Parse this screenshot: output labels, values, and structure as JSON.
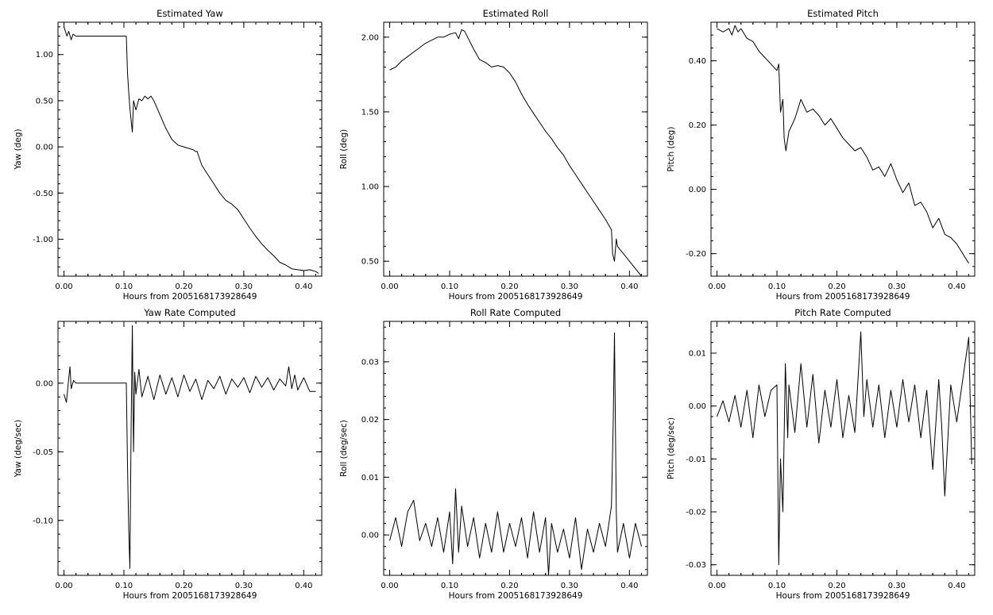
{
  "chart_data": [
    {
      "type": "line",
      "title": "Estimated Yaw",
      "xlabel": "Hours from 2005168173928649",
      "ylabel": "Yaw (deg)",
      "xlim": [
        -0.01,
        0.43
      ],
      "ylim": [
        -1.4,
        1.35
      ],
      "xticks": [
        0.0,
        0.1,
        0.2,
        0.3,
        0.4
      ],
      "xtick_labels": [
        "0.00",
        "0.10",
        "0.20",
        "0.30",
        "0.40"
      ],
      "yticks": [
        1.0,
        0.5,
        0.0,
        -0.5,
        -1.0
      ],
      "ytick_labels": [
        "1.00",
        "0.50",
        "0.00",
        "-0.50",
        "-1.00"
      ],
      "series": [
        {
          "x": [
            0.0,
            0.005,
            0.008,
            0.012,
            0.015,
            0.02,
            0.05,
            0.08,
            0.104,
            0.106,
            0.108,
            0.11,
            0.112,
            0.114,
            0.116,
            0.12,
            0.125,
            0.13,
            0.135,
            0.14,
            0.145,
            0.15,
            0.16,
            0.17,
            0.18,
            0.19,
            0.2,
            0.21,
            0.215,
            0.22,
            0.222,
            0.23,
            0.24,
            0.25,
            0.26,
            0.27,
            0.28,
            0.29,
            0.3,
            0.31,
            0.32,
            0.33,
            0.34,
            0.35,
            0.36,
            0.37,
            0.38,
            0.39,
            0.4,
            0.41,
            0.42,
            0.425
          ],
          "values": [
            1.3,
            1.2,
            1.25,
            1.16,
            1.22,
            1.2,
            1.2,
            1.2,
            1.2,
            0.8,
            0.6,
            0.42,
            0.28,
            0.16,
            0.5,
            0.4,
            0.52,
            0.5,
            0.55,
            0.52,
            0.55,
            0.5,
            0.35,
            0.2,
            0.08,
            0.02,
            0.0,
            -0.02,
            -0.03,
            -0.05,
            -0.05,
            -0.2,
            -0.3,
            -0.4,
            -0.5,
            -0.58,
            -0.62,
            -0.68,
            -0.78,
            -0.88,
            -0.97,
            -1.05,
            -1.12,
            -1.18,
            -1.25,
            -1.28,
            -1.32,
            -1.33,
            -1.34,
            -1.33,
            -1.35,
            -1.37
          ]
        }
      ]
    },
    {
      "type": "line",
      "title": "Estimated Roll",
      "xlabel": "Hours from 2005168173928649",
      "ylabel": "Roll (deg)",
      "xlim": [
        -0.01,
        0.43
      ],
      "ylim": [
        0.4,
        2.1
      ],
      "xticks": [
        0.0,
        0.1,
        0.2,
        0.3,
        0.4
      ],
      "xtick_labels": [
        "0.00",
        "0.10",
        "0.20",
        "0.30",
        "0.40"
      ],
      "yticks": [
        2.0,
        1.5,
        1.0,
        0.5
      ],
      "ytick_labels": [
        "2.00",
        "1.50",
        "1.00",
        "0.50"
      ],
      "series": [
        {
          "x": [
            0.0,
            0.01,
            0.02,
            0.03,
            0.04,
            0.05,
            0.06,
            0.07,
            0.08,
            0.09,
            0.1,
            0.11,
            0.115,
            0.12,
            0.125,
            0.13,
            0.14,
            0.15,
            0.16,
            0.17,
            0.18,
            0.19,
            0.2,
            0.21,
            0.22,
            0.23,
            0.24,
            0.25,
            0.26,
            0.27,
            0.28,
            0.29,
            0.3,
            0.31,
            0.32,
            0.33,
            0.34,
            0.35,
            0.36,
            0.37,
            0.372,
            0.375,
            0.378,
            0.38,
            0.39,
            0.4,
            0.41,
            0.42
          ],
          "values": [
            1.78,
            1.8,
            1.84,
            1.87,
            1.9,
            1.93,
            1.96,
            1.98,
            2.0,
            2.0,
            2.02,
            2.03,
            1.99,
            2.05,
            2.04,
            2.0,
            1.92,
            1.85,
            1.83,
            1.8,
            1.81,
            1.8,
            1.76,
            1.7,
            1.62,
            1.55,
            1.49,
            1.43,
            1.37,
            1.32,
            1.26,
            1.21,
            1.14,
            1.08,
            1.02,
            0.96,
            0.9,
            0.84,
            0.78,
            0.71,
            0.55,
            0.5,
            0.65,
            0.6,
            0.55,
            0.5,
            0.45,
            0.4
          ]
        }
      ]
    },
    {
      "type": "line",
      "title": "Estimated Pitch",
      "xlabel": "Hours from 2005168173928649",
      "ylabel": "Pitch (deg)",
      "xlim": [
        -0.01,
        0.43
      ],
      "ylim": [
        -0.27,
        0.52
      ],
      "xticks": [
        0.0,
        0.1,
        0.2,
        0.3,
        0.4
      ],
      "xtick_labels": [
        "0.00",
        "0.10",
        "0.20",
        "0.30",
        "0.40"
      ],
      "yticks": [
        0.4,
        0.2,
        0.0,
        -0.2
      ],
      "ytick_labels": [
        "0.40",
        "0.20",
        "0.00",
        "-0.20"
      ],
      "series": [
        {
          "x": [
            0.0,
            0.01,
            0.02,
            0.025,
            0.03,
            0.035,
            0.04,
            0.05,
            0.06,
            0.07,
            0.08,
            0.09,
            0.1,
            0.103,
            0.106,
            0.11,
            0.112,
            0.115,
            0.12,
            0.13,
            0.14,
            0.15,
            0.16,
            0.17,
            0.18,
            0.19,
            0.2,
            0.21,
            0.22,
            0.23,
            0.24,
            0.25,
            0.26,
            0.27,
            0.28,
            0.29,
            0.3,
            0.31,
            0.32,
            0.33,
            0.34,
            0.35,
            0.36,
            0.37,
            0.38,
            0.39,
            0.4,
            0.41,
            0.42
          ],
          "values": [
            0.5,
            0.49,
            0.5,
            0.48,
            0.51,
            0.49,
            0.5,
            0.47,
            0.46,
            0.43,
            0.41,
            0.39,
            0.37,
            0.39,
            0.24,
            0.28,
            0.16,
            0.12,
            0.18,
            0.22,
            0.28,
            0.24,
            0.25,
            0.23,
            0.2,
            0.22,
            0.19,
            0.16,
            0.14,
            0.12,
            0.13,
            0.1,
            0.06,
            0.07,
            0.04,
            0.08,
            0.03,
            -0.01,
            0.02,
            -0.05,
            -0.04,
            -0.07,
            -0.12,
            -0.09,
            -0.14,
            -0.15,
            -0.17,
            -0.2,
            -0.23
          ]
        }
      ]
    },
    {
      "type": "line",
      "title": "Yaw Rate Computed",
      "xlabel": "Hours from 2005168173928649",
      "ylabel": "Yaw (deg/sec)",
      "xlim": [
        -0.01,
        0.43
      ],
      "ylim": [
        -0.14,
        0.045
      ],
      "xticks": [
        0.0,
        0.1,
        0.2,
        0.3,
        0.4
      ],
      "xtick_labels": [
        "0.00",
        "0.10",
        "0.20",
        "0.30",
        "0.40"
      ],
      "yticks": [
        0.0,
        -0.05,
        -0.1
      ],
      "ytick_labels": [
        "0.00",
        "-0.05",
        "-0.10"
      ],
      "series": [
        {
          "x": [
            0.0,
            0.004,
            0.008,
            0.01,
            0.012,
            0.016,
            0.02,
            0.05,
            0.08,
            0.104,
            0.106,
            0.108,
            0.11,
            0.112,
            0.114,
            0.116,
            0.118,
            0.12,
            0.125,
            0.13,
            0.14,
            0.15,
            0.16,
            0.17,
            0.18,
            0.19,
            0.2,
            0.21,
            0.22,
            0.23,
            0.24,
            0.25,
            0.26,
            0.27,
            0.28,
            0.29,
            0.3,
            0.31,
            0.32,
            0.33,
            0.34,
            0.35,
            0.36,
            0.37,
            0.375,
            0.38,
            0.385,
            0.39,
            0.4,
            0.41,
            0.42
          ],
          "values": [
            -0.008,
            -0.014,
            0.004,
            0.012,
            -0.004,
            0.002,
            0.0,
            0.0,
            0.0,
            0.0,
            -0.06,
            -0.105,
            -0.135,
            -0.03,
            0.042,
            -0.05,
            0.008,
            -0.008,
            0.01,
            -0.01,
            0.005,
            -0.012,
            0.006,
            -0.008,
            0.004,
            -0.01,
            0.006,
            -0.006,
            0.003,
            -0.012,
            0.002,
            -0.004,
            0.005,
            -0.008,
            0.003,
            -0.003,
            0.004,
            -0.007,
            0.005,
            -0.003,
            0.004,
            -0.005,
            0.003,
            -0.002,
            0.012,
            -0.004,
            0.006,
            -0.005,
            0.004,
            -0.006,
            -0.006
          ]
        }
      ]
    },
    {
      "type": "line",
      "title": "Roll Rate Computed",
      "xlabel": "Hours from 2005168173928649",
      "ylabel": "Roll (deg/sec)",
      "xlim": [
        -0.01,
        0.43
      ],
      "ylim": [
        -0.007,
        0.037
      ],
      "xticks": [
        0.0,
        0.1,
        0.2,
        0.3,
        0.4
      ],
      "xtick_labels": [
        "0.00",
        "0.10",
        "0.20",
        "0.30",
        "0.40"
      ],
      "yticks": [
        0.03,
        0.02,
        0.01,
        0.0
      ],
      "ytick_labels": [
        "0.03",
        "0.02",
        "0.01",
        "0.00"
      ],
      "series": [
        {
          "x": [
            0.0,
            0.01,
            0.02,
            0.03,
            0.04,
            0.05,
            0.06,
            0.07,
            0.08,
            0.09,
            0.1,
            0.105,
            0.11,
            0.115,
            0.12,
            0.13,
            0.14,
            0.15,
            0.16,
            0.17,
            0.18,
            0.19,
            0.2,
            0.21,
            0.22,
            0.23,
            0.24,
            0.25,
            0.26,
            0.265,
            0.27,
            0.28,
            0.29,
            0.3,
            0.31,
            0.32,
            0.33,
            0.34,
            0.35,
            0.36,
            0.37,
            0.373,
            0.375,
            0.378,
            0.38,
            0.39,
            0.4,
            0.41,
            0.42
          ],
          "values": [
            -0.001,
            0.003,
            -0.002,
            0.004,
            0.006,
            -0.001,
            0.002,
            -0.002,
            0.003,
            -0.003,
            0.004,
            -0.005,
            0.008,
            -0.003,
            0.005,
            -0.002,
            0.003,
            -0.004,
            0.002,
            -0.003,
            0.004,
            -0.003,
            0.002,
            -0.002,
            0.003,
            -0.004,
            0.004,
            -0.003,
            0.003,
            -0.007,
            0.002,
            -0.003,
            0.001,
            -0.004,
            0.003,
            -0.006,
            0.001,
            -0.003,
            0.002,
            -0.002,
            0.005,
            0.02,
            0.035,
            0.004,
            -0.003,
            0.002,
            -0.004,
            0.002,
            -0.002
          ]
        }
      ]
    },
    {
      "type": "line",
      "title": "Pitch Rate Computed",
      "xlabel": "Hours from 2005168173928649",
      "ylabel": "Pitch (deg/sec)",
      "xlim": [
        -0.01,
        0.43
      ],
      "ylim": [
        -0.032,
        0.016
      ],
      "xticks": [
        0.0,
        0.1,
        0.2,
        0.3,
        0.4
      ],
      "xtick_labels": [
        "0.00",
        "0.10",
        "0.20",
        "0.30",
        "0.40"
      ],
      "yticks": [
        0.01,
        0.0,
        -0.01,
        -0.02,
        -0.03
      ],
      "ytick_labels": [
        "0.01",
        "0.00",
        "-0.01",
        "-0.02",
        "-0.03"
      ],
      "series": [
        {
          "x": [
            0.0,
            0.01,
            0.02,
            0.03,
            0.04,
            0.05,
            0.06,
            0.07,
            0.08,
            0.09,
            0.1,
            0.103,
            0.106,
            0.11,
            0.114,
            0.118,
            0.12,
            0.13,
            0.14,
            0.15,
            0.16,
            0.17,
            0.18,
            0.19,
            0.2,
            0.21,
            0.22,
            0.23,
            0.24,
            0.245,
            0.25,
            0.26,
            0.27,
            0.28,
            0.29,
            0.3,
            0.31,
            0.32,
            0.33,
            0.34,
            0.35,
            0.36,
            0.37,
            0.375,
            0.38,
            0.39,
            0.4,
            0.41,
            0.42,
            0.425
          ],
          "values": [
            -0.002,
            0.001,
            -0.003,
            0.002,
            -0.004,
            0.003,
            -0.006,
            0.004,
            -0.002,
            0.003,
            0.004,
            -0.03,
            -0.01,
            -0.02,
            0.008,
            -0.006,
            0.004,
            -0.005,
            0.008,
            -0.004,
            0.006,
            -0.007,
            0.003,
            -0.004,
            0.005,
            -0.006,
            0.002,
            -0.005,
            0.014,
            -0.002,
            0.005,
            -0.004,
            0.004,
            -0.006,
            0.003,
            -0.004,
            0.005,
            -0.003,
            0.004,
            -0.006,
            0.003,
            -0.012,
            0.005,
            -0.004,
            -0.017,
            0.004,
            -0.003,
            0.005,
            0.013,
            -0.011
          ]
        }
      ]
    }
  ]
}
